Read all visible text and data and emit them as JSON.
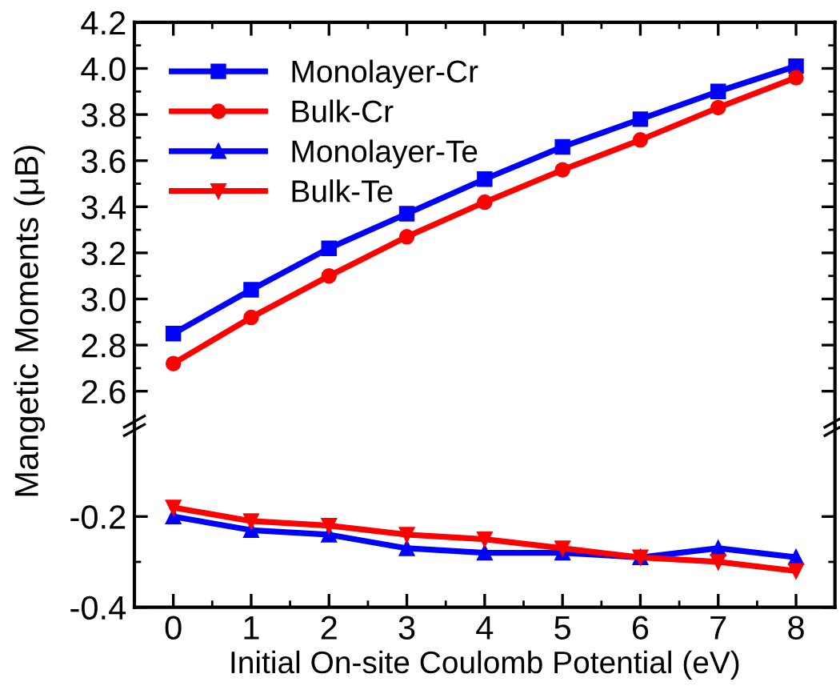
{
  "chart_data": [
    {
      "type": "line",
      "ylabel": "Mangetic Moments (μB)",
      "x": [
        0,
        1,
        2,
        3,
        4,
        5,
        6,
        7,
        8
      ],
      "xlim": [
        -0.5,
        8.5
      ],
      "xticks": [
        0,
        1,
        2,
        3,
        4,
        5,
        6,
        7,
        8
      ],
      "ylim": [
        2.45,
        4.2
      ],
      "yticks": [
        2.6,
        2.8,
        {
          "value": 3,
          "label": "3.0"
        },
        3.2,
        3.4,
        3.6,
        3.8,
        {
          "value": 4,
          "label": "4.0"
        },
        4.2
      ],
      "tick_labels": "y",
      "legend": "top left",
      "grid": false,
      "series": [
        {
          "name": "Monolayer-Cr",
          "color": "#0000ff",
          "marker": "square",
          "values": [
            2.85,
            3.04,
            3.22,
            3.37,
            3.52,
            3.66,
            3.78,
            3.9,
            4.01
          ]
        },
        {
          "name": "Bulk-Cr",
          "color": "#ff0000",
          "marker": "circle",
          "values": [
            2.72,
            2.92,
            3.1,
            3.27,
            3.42,
            3.56,
            3.69,
            3.83,
            3.96
          ]
        }
      ]
    },
    {
      "type": "line",
      "xlabel": "Initial On-site Coulomb Potential (eV)",
      "x": [
        0,
        1,
        2,
        3,
        4,
        5,
        6,
        7,
        8
      ],
      "xlim": [
        -0.5,
        8.5
      ],
      "xticks": [
        0,
        1,
        2,
        3,
        4,
        5,
        6,
        7,
        8
      ],
      "ylim": [
        -0.4,
        0
      ],
      "yticks": [
        -0.4,
        -0.2
      ],
      "grid": false,
      "legend": "top left",
      "series": [
        {
          "name": "Monolayer-Te",
          "color": "#0000ff",
          "marker": "triangle",
          "values": [
            -0.2,
            -0.23,
            -0.24,
            -0.27,
            -0.28,
            -0.28,
            -0.29,
            -0.27,
            -0.29
          ]
        },
        {
          "name": "Bulk-Te",
          "color": "#ff0000",
          "marker": "triangle_down",
          "values": [
            -0.18,
            -0.21,
            -0.22,
            -0.24,
            -0.25,
            -0.27,
            -0.29,
            -0.3,
            -0.32
          ]
        }
      ]
    }
  ]
}
